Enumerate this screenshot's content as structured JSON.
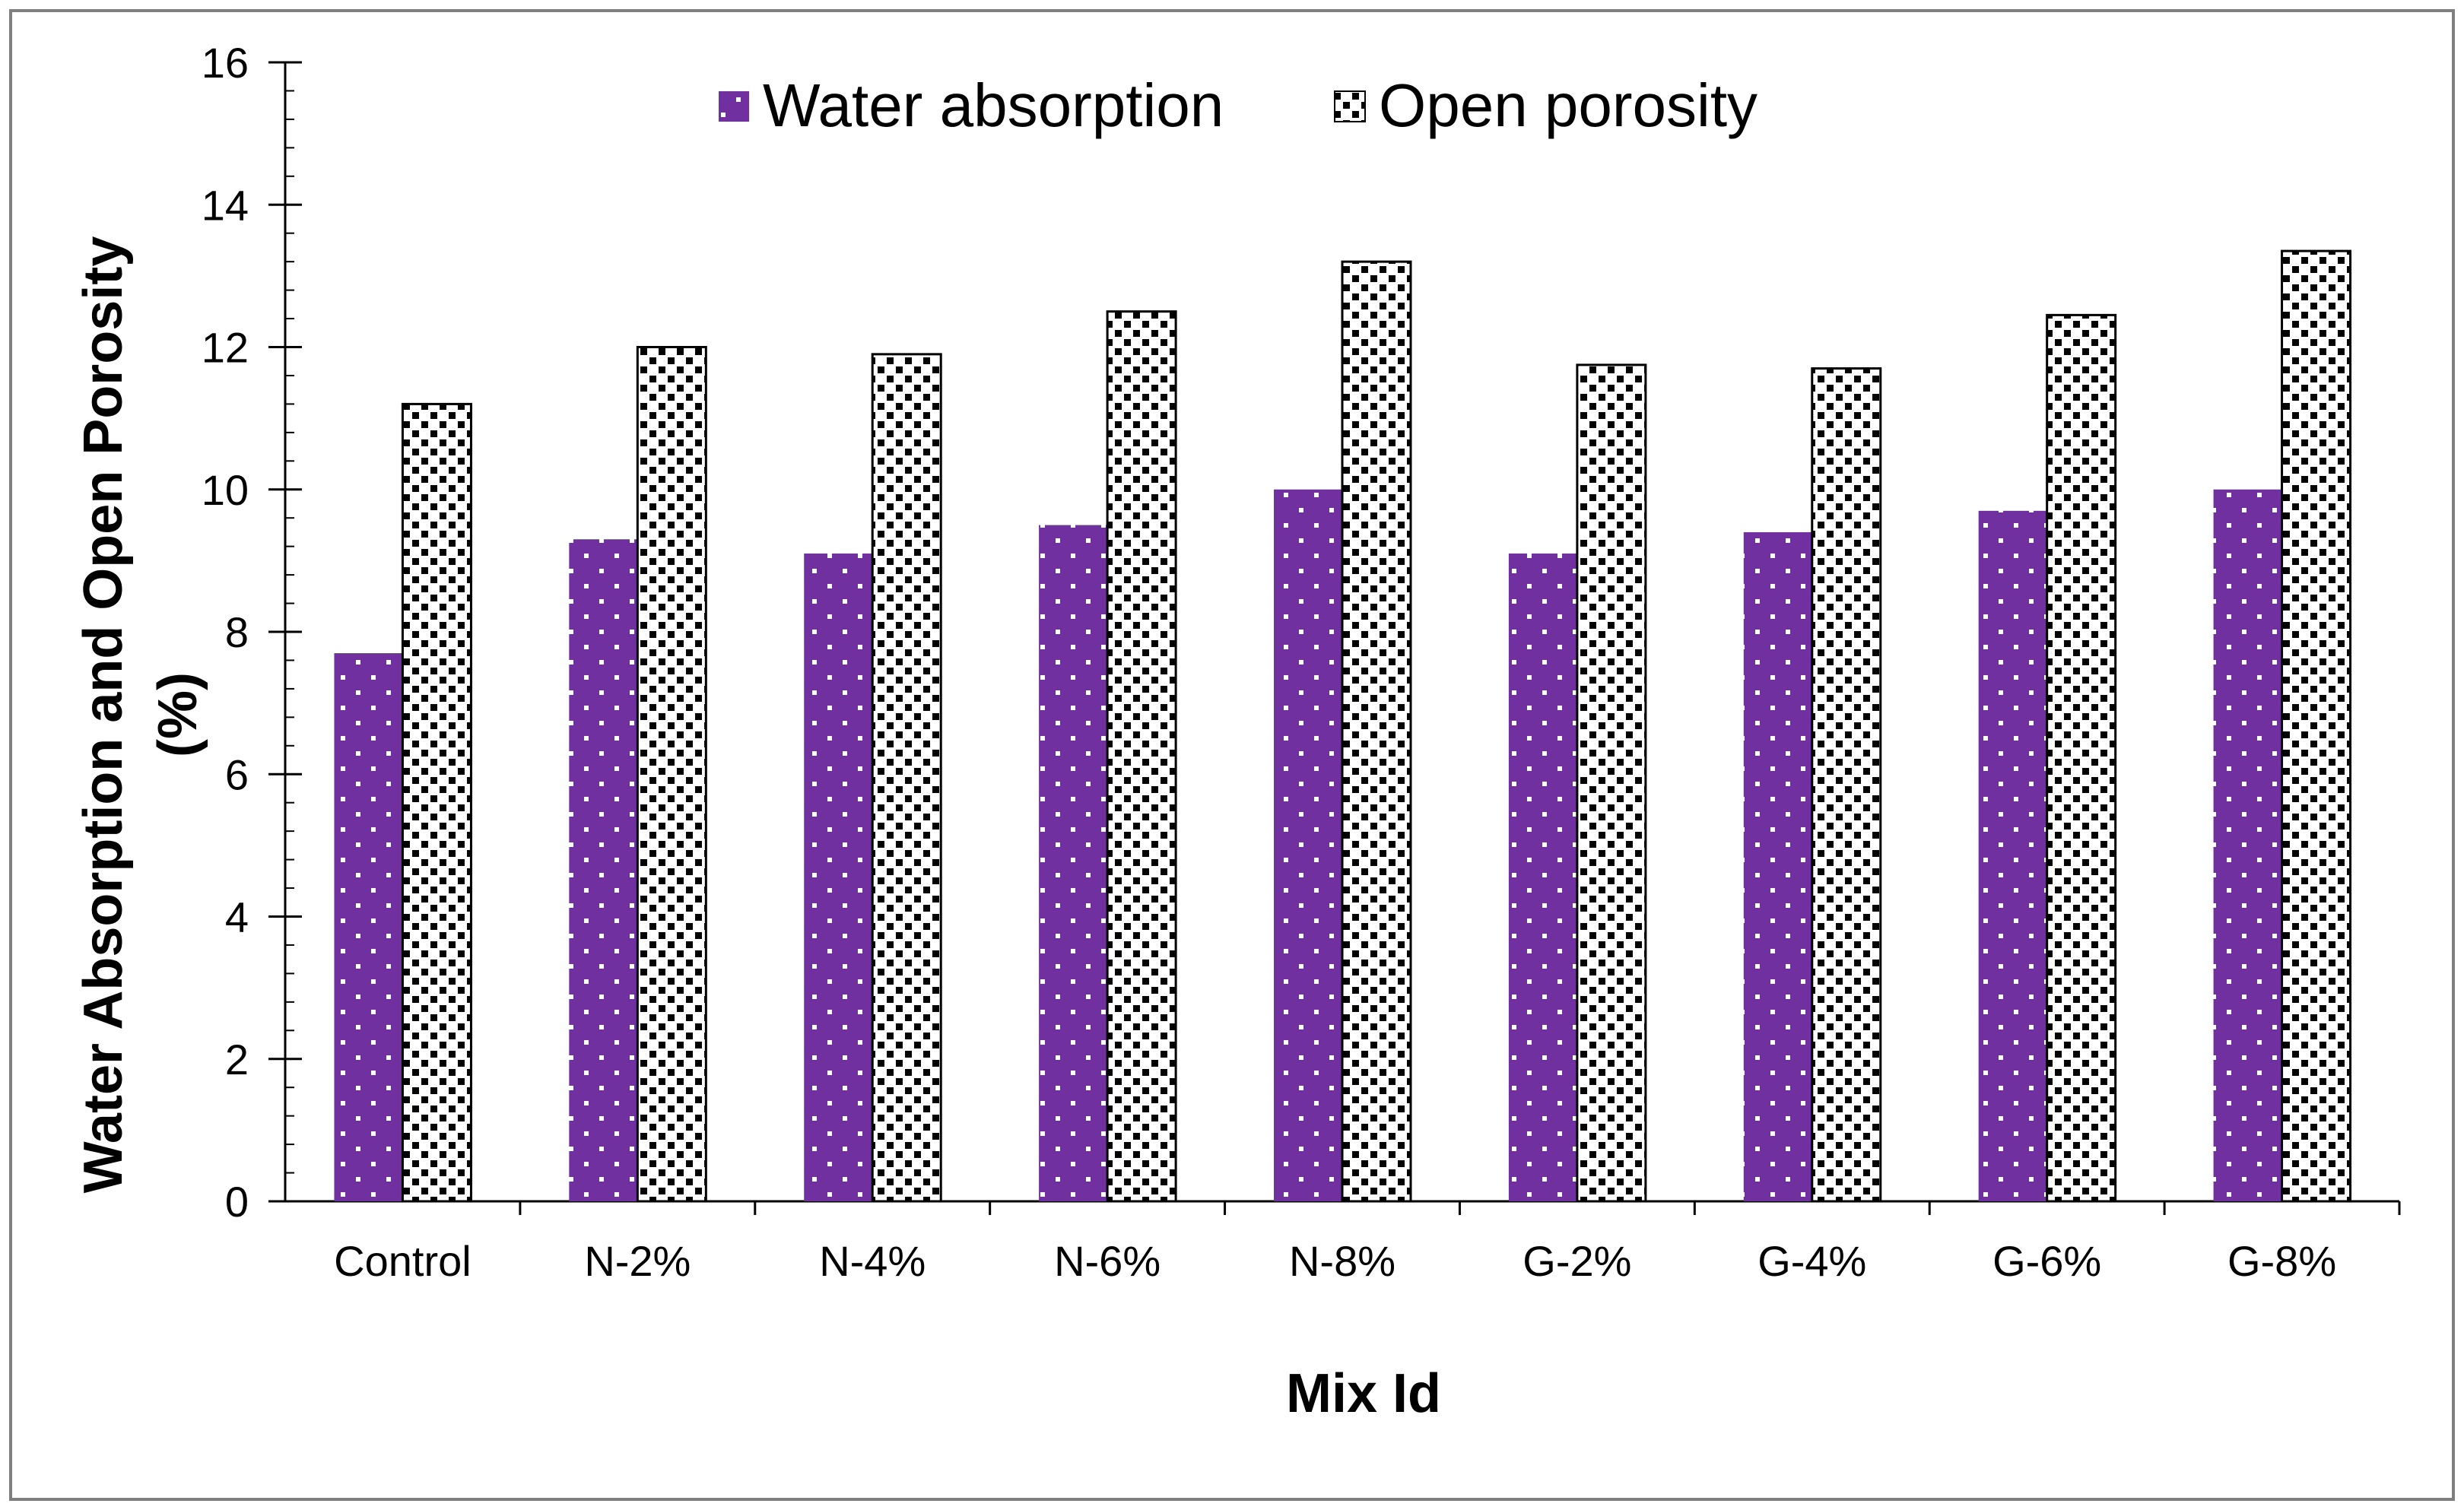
{
  "chart_data": {
    "type": "bar",
    "title": "",
    "xlabel": "Mix Id",
    "ylabel_lines": [
      "Water Absorption and Open Porosity",
      "(%)"
    ],
    "categories": [
      "Control",
      "N-2%",
      "N-4%",
      "N-6%",
      "N-8%",
      "G-2%",
      "G-4%",
      "G-6%",
      "G-8%"
    ],
    "series": [
      {
        "name": "Water absorption",
        "color": "#7030A0",
        "pattern": "white-dots",
        "values": [
          7.7,
          9.3,
          9.1,
          9.5,
          10.0,
          9.1,
          9.4,
          9.7,
          10.0
        ]
      },
      {
        "name": "Open porosity",
        "color": "#000000",
        "pattern": "black-checker",
        "values": [
          11.2,
          12.0,
          11.9,
          12.5,
          13.2,
          11.75,
          11.7,
          12.45,
          13.35
        ]
      }
    ],
    "ylim": [
      0,
      16
    ],
    "yticks": [
      0,
      2,
      4,
      6,
      8,
      10,
      12,
      14,
      16
    ],
    "y_minor_step": 0.4,
    "grid": false,
    "legend_position": "top"
  }
}
